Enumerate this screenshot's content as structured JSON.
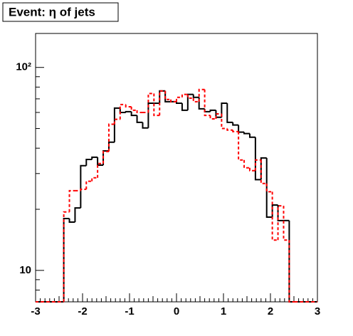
{
  "chart_data": {
    "type": "histogram",
    "title": "Event: η of jets",
    "bins": [
      -3,
      -2.88,
      -2.76,
      -2.64,
      -2.52,
      -2.4,
      -2.28,
      -2.16,
      -2.04,
      -1.92,
      -1.8,
      -1.68,
      -1.56,
      -1.44,
      -1.32,
      -1.2,
      -1.08,
      -0.96,
      -0.84,
      -0.72,
      -0.6,
      -0.48,
      -0.36,
      -0.24,
      -0.12,
      0,
      0.12,
      0.24,
      0.36,
      0.48,
      0.6,
      0.72,
      0.84,
      0.96,
      1.08,
      1.2,
      1.32,
      1.44,
      1.56,
      1.68,
      1.8,
      1.92,
      2.04,
      2.16,
      2.28,
      2.4,
      2.52,
      2.64,
      2.76,
      2.88,
      3
    ],
    "series": [
      {
        "color": "#000000",
        "line_style": "solid",
        "values": [
          0,
          0,
          0,
          0,
          0,
          18.0,
          17.3,
          20.3,
          32.8,
          35.2,
          36.1,
          33.0,
          38.8,
          42.8,
          63,
          60,
          60.5,
          58,
          53.6,
          50.3,
          66.6,
          66.6,
          76.6,
          67.8,
          67.8,
          66.6,
          61.5,
          73.6,
          71.2,
          62.5,
          60.5,
          61.5,
          56.8,
          66.6,
          53.6,
          52,
          48,
          47.2,
          45.3,
          28,
          35.8,
          18.3,
          21,
          17.6,
          17.6,
          0,
          0,
          0,
          0,
          0
        ]
      },
      {
        "color": "#ff0000",
        "line_style": "dashed",
        "values": [
          0,
          0,
          0,
          0,
          0,
          19.4,
          24.7,
          24.7,
          25.1,
          27.5,
          28.6,
          33.6,
          38.5,
          52.5,
          55.5,
          65.6,
          64,
          61.5,
          60,
          60,
          74.4,
          58,
          76.6,
          69.5,
          67.8,
          71.2,
          73.6,
          70.6,
          67.8,
          77.8,
          58,
          55.8,
          59,
          50,
          49.1,
          48.3,
          35,
          32,
          31,
          35,
          26.8,
          24.4,
          14.1,
          20.8,
          14.1,
          0,
          0,
          0,
          0,
          0
        ]
      }
    ],
    "xlim": [
      -3,
      3
    ],
    "xticks": [
      -3,
      -2,
      -1,
      0,
      1,
      2,
      3
    ],
    "ylim": [
      7,
      147
    ],
    "yticks": [
      10,
      {
        "value": 100,
        "label": "10²"
      }
    ],
    "log_y": true
  }
}
